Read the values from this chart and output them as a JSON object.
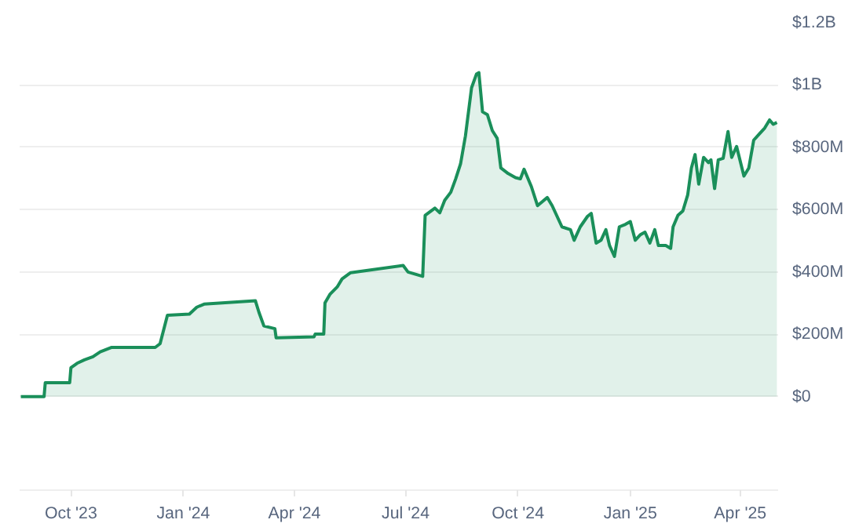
{
  "chart_data": {
    "type": "area",
    "color": "#1a8f5a",
    "grid": "y",
    "ylim": [
      -300000000,
      1200000000
    ],
    "yticks": [
      {
        "value": 0,
        "label": "$0"
      },
      {
        "value": 200000000,
        "label": "$200M"
      },
      {
        "value": 400000000,
        "label": "$400M"
      },
      {
        "value": 600000000,
        "label": "$600M"
      },
      {
        "value": 800000000,
        "label": "$800M"
      },
      {
        "value": 1000000000,
        "label": "$1B"
      },
      {
        "value": 1200000000,
        "label": "$1.2B"
      }
    ],
    "xlim": [
      "2023-08-20",
      "2025-05-02"
    ],
    "xticks": [
      {
        "value": "2023-10-01",
        "label": "Oct '23"
      },
      {
        "value": "2024-01-01",
        "label": "Jan '24"
      },
      {
        "value": "2024-04-01",
        "label": "Apr '24"
      },
      {
        "value": "2024-07-01",
        "label": "Jul '24"
      },
      {
        "value": "2024-10-01",
        "label": "Oct '24"
      },
      {
        "value": "2025-01-01",
        "label": "Jan '25"
      },
      {
        "value": "2025-04-01",
        "label": "Apr '25"
      }
    ],
    "x": [
      "2023-08-21",
      "2023-09-09",
      "2023-09-10",
      "2023-09-30",
      "2023-10-01",
      "2023-10-06",
      "2023-10-12",
      "2023-10-19",
      "2023-10-25",
      "2023-11-03",
      "2023-12-09",
      "2023-12-13",
      "2023-12-19",
      "2024-01-06",
      "2024-01-12",
      "2024-01-18",
      "2024-02-29",
      "2024-03-03",
      "2024-03-07",
      "2024-03-16",
      "2024-03-17",
      "2024-04-17",
      "2024-04-18",
      "2024-04-25",
      "2024-04-26",
      "2024-04-30",
      "2024-05-06",
      "2024-05-10",
      "2024-05-17",
      "2024-06-29",
      "2024-07-03",
      "2024-07-15",
      "2024-07-17",
      "2024-07-25",
      "2024-07-29",
      "2024-08-02",
      "2024-08-07",
      "2024-08-11",
      "2024-08-15",
      "2024-08-19",
      "2024-08-24",
      "2024-08-28",
      "2024-08-30",
      "2024-09-02",
      "2024-09-06",
      "2024-09-10",
      "2024-09-14",
      "2024-09-17",
      "2024-09-23",
      "2024-09-29",
      "2024-10-03",
      "2024-10-06",
      "2024-10-12",
      "2024-10-17",
      "2024-10-25",
      "2024-10-29",
      "2024-11-02",
      "2024-11-06",
      "2024-11-13",
      "2024-11-16",
      "2024-11-21",
      "2024-11-27",
      "2024-11-30",
      "2024-12-04",
      "2024-12-08",
      "2024-12-12",
      "2024-12-15",
      "2024-12-19",
      "2024-12-23",
      "2024-12-28",
      "2025-01-01",
      "2025-01-05",
      "2025-01-09",
      "2025-01-13",
      "2025-01-17",
      "2025-01-21",
      "2025-01-24",
      "2025-01-30",
      "2025-02-03",
      "2025-02-05",
      "2025-02-09",
      "2025-02-13",
      "2025-02-17",
      "2025-02-20",
      "2025-02-23",
      "2025-02-26",
      "2025-03-02",
      "2025-03-06",
      "2025-03-08",
      "2025-03-11",
      "2025-03-14",
      "2025-03-18",
      "2025-03-22",
      "2025-03-25",
      "2025-03-29",
      "2025-04-04",
      "2025-04-08",
      "2025-04-12",
      "2025-04-17",
      "2025-04-21",
      "2025-04-25",
      "2025-04-28",
      "2025-05-01"
    ],
    "values": [
      0,
      0,
      45000000,
      45000000,
      93000000,
      107000000,
      118000000,
      128000000,
      144000000,
      158000000,
      158000000,
      170000000,
      261000000,
      265000000,
      287000000,
      297000000,
      308000000,
      270000000,
      227000000,
      218000000,
      189000000,
      192000000,
      201000000,
      201000000,
      301000000,
      328000000,
      352000000,
      378000000,
      398000000,
      421000000,
      400000000,
      386000000,
      582000000,
      605000000,
      590000000,
      630000000,
      656000000,
      699000000,
      747000000,
      837000000,
      991000000,
      1035000000,
      1040000000,
      914000000,
      905000000,
      854000000,
      829000000,
      734000000,
      716000000,
      703000000,
      699000000,
      730000000,
      674000000,
      613000000,
      639000000,
      613000000,
      579000000,
      545000000,
      536000000,
      502000000,
      545000000,
      579000000,
      588000000,
      493000000,
      502000000,
      536000000,
      485000000,
      450000000,
      545000000,
      553000000,
      562000000,
      502000000,
      519000000,
      528000000,
      493000000,
      536000000,
      485000000,
      485000000,
      476000000,
      545000000,
      582000000,
      596000000,
      648000000,
      734000000,
      777000000,
      682000000,
      768000000,
      751000000,
      760000000,
      668000000,
      760000000,
      765000000,
      851000000,
      768000000,
      803000000,
      708000000,
      734000000,
      823000000,
      845000000,
      862000000,
      888000000,
      874000000,
      880000000
    ]
  }
}
